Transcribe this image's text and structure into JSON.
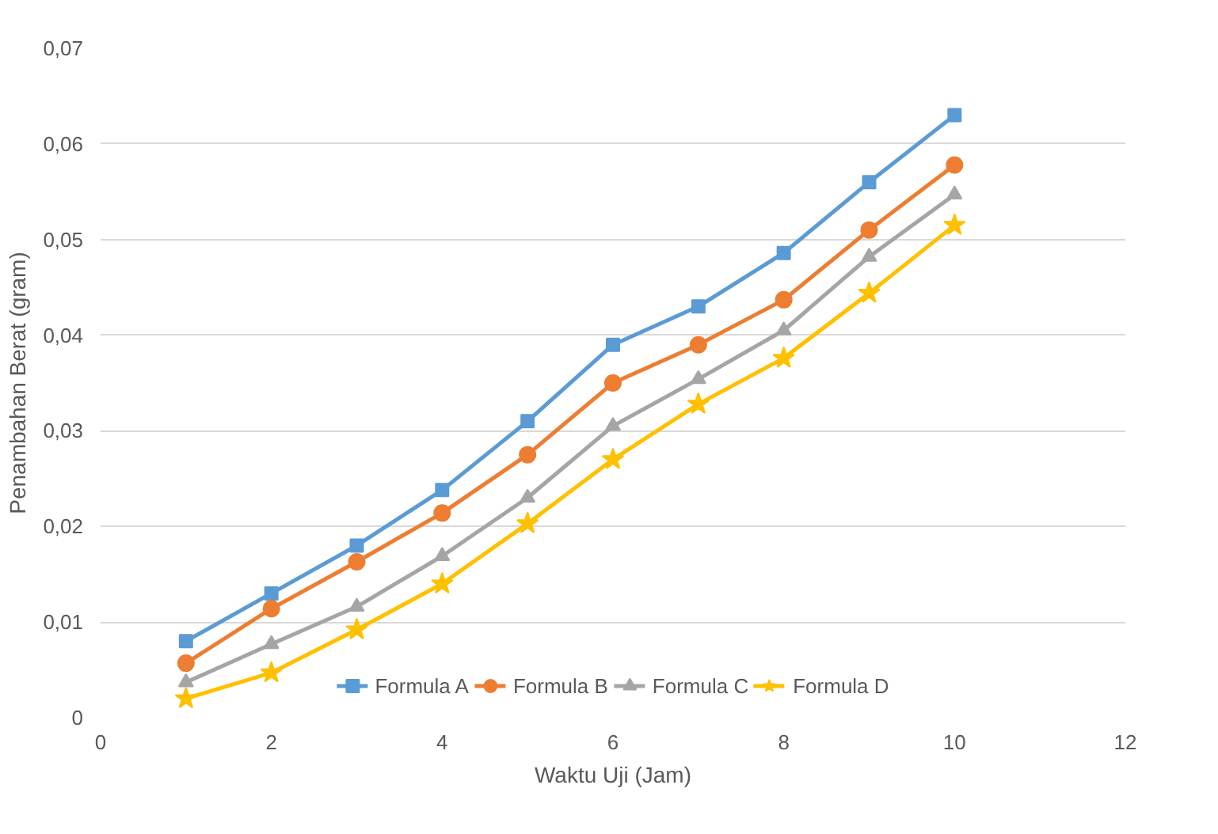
{
  "chart_data": {
    "type": "line",
    "xlabel": "Waktu Uji (Jam)",
    "ylabel": "Penambahan Berat (gram)",
    "x": [
      1,
      2,
      3,
      4,
      5,
      6,
      7,
      8,
      9,
      10
    ],
    "xlim": [
      0,
      12
    ],
    "xticks": [
      0,
      2,
      4,
      6,
      8,
      10,
      12
    ],
    "ylim": [
      0,
      0.07
    ],
    "yticks": [
      0,
      {
        "value": 0.01,
        "label": "0,01"
      },
      {
        "value": 0.02,
        "label": "0,02"
      },
      {
        "value": 0.03,
        "label": "0,03"
      },
      {
        "value": 0.04,
        "label": "0,04"
      },
      {
        "value": 0.05,
        "label": "0,05"
      },
      {
        "value": 0.06,
        "label": "0,06"
      },
      {
        "value": 0.07,
        "label": "0,07"
      }
    ],
    "grid": "y",
    "legend": "bottom",
    "line_style": "solid",
    "series": [
      {
        "name": "Formula A",
        "color": "#5b9bd5",
        "marker": "square",
        "values": [
          0.008,
          0.013,
          0.018,
          0.0238,
          0.031,
          0.039,
          0.043,
          0.0486,
          0.056,
          0.063
        ]
      },
      {
        "name": "Formula B",
        "color": "#ed7d31",
        "marker": "circle",
        "values": [
          0.0057,
          0.0114,
          0.0163,
          0.0214,
          0.0275,
          0.035,
          0.039,
          0.0437,
          0.051,
          0.0578
        ]
      },
      {
        "name": "Formula C",
        "color": "#a5a5a5",
        "marker": "triangle",
        "values": [
          0.0037,
          0.0077,
          0.0116,
          0.0169,
          0.023,
          0.0305,
          0.0354,
          0.0405,
          0.0482,
          0.0547
        ]
      },
      {
        "name": "Formula D",
        "color": "#ffc000",
        "marker": "star",
        "values": [
          0.002,
          0.0047,
          0.0092,
          0.014,
          0.0203,
          0.027,
          0.0328,
          0.0376,
          0.0444,
          0.0515
        ]
      }
    ]
  }
}
